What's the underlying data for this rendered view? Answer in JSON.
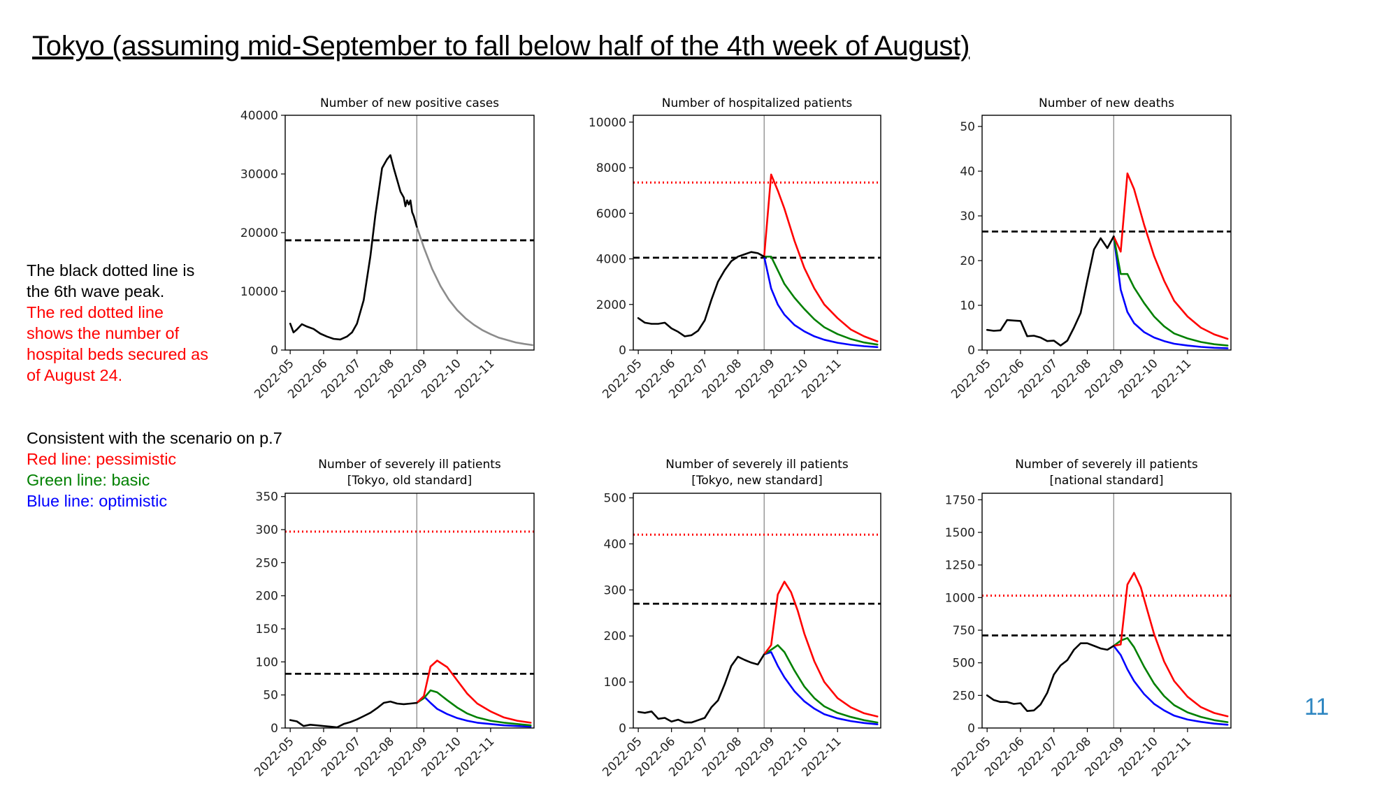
{
  "slide": {
    "title": "Tokyo (assuming mid-September to fall below half of the 4th week of August)",
    "page_number": "11",
    "notes_1": [
      {
        "text": "The black dotted line is",
        "color": "#000000"
      },
      {
        "text": "the 6th wave peak.",
        "color": "#000000"
      },
      {
        "text": "The red dotted line",
        "color": "#ff0000"
      },
      {
        "text": "shows the number of",
        "color": "#ff0000"
      },
      {
        "text": "hospital beds secured as",
        "color": "#ff0000"
      },
      {
        "text": "of August 24.",
        "color": "#ff0000"
      }
    ],
    "notes_2": [
      {
        "text": "Consistent with the scenario on p.7",
        "color": "#000000"
      },
      {
        "text": "Red line: pessimistic",
        "color": "#ff0000"
      },
      {
        "text": "Green line: basic",
        "color": "#008000"
      },
      {
        "text": "Blue line: optimistic",
        "color": "#0000ff"
      }
    ]
  },
  "colors": {
    "observed": "#000000",
    "projection_single": "#8c8c8c",
    "pessimistic": "#ff0000",
    "basic": "#008000",
    "optimistic": "#0000ff",
    "sixth_wave_peak": "#000000",
    "hospital_beds": "#ff0000",
    "vertical_marker": "#808080"
  },
  "chart_data": [
    {
      "type": "line",
      "title": [
        "Number of new positive cases"
      ],
      "x_ticks": [
        "2022-05",
        "2022-06",
        "2022-07",
        "2022-08",
        "2022-09",
        "2022-10",
        "2022-11"
      ],
      "ylim": [
        0,
        40000
      ],
      "y_ticks": [
        0,
        10000,
        20000,
        30000,
        40000
      ],
      "grid": false,
      "marker_x": 3.79,
      "reference_lines": [
        {
          "kind": "sixth_wave_peak",
          "y": 18700
        }
      ],
      "series": [
        {
          "role": "observed",
          "x": [
            0,
            0.1,
            0.2,
            0.35,
            0.5,
            0.7,
            0.9,
            1.1,
            1.3,
            1.5,
            1.7,
            1.85,
            2.0,
            2.2,
            2.4,
            2.55,
            2.75,
            2.9,
            3.0,
            3.1,
            3.2,
            3.3,
            3.4,
            3.45,
            3.5,
            3.55,
            3.6,
            3.65,
            3.7,
            3.79
          ],
          "y": [
            4500,
            3000,
            3500,
            4400,
            4000,
            3600,
            2800,
            2300,
            1900,
            1800,
            2300,
            3000,
            4500,
            8500,
            16000,
            23000,
            31000,
            32500,
            33200,
            31000,
            29000,
            27000,
            26000,
            24500,
            25500,
            24800,
            25500,
            23500,
            22800,
            21000
          ]
        },
        {
          "role": "projection_single",
          "x": [
            3.79,
            4.0,
            4.25,
            4.5,
            4.75,
            5.0,
            5.25,
            5.5,
            5.75,
            6.0,
            6.25,
            6.5,
            6.75,
            7.0,
            7.25
          ],
          "y": [
            21000,
            17500,
            13800,
            10900,
            8600,
            6800,
            5400,
            4300,
            3400,
            2700,
            2100,
            1700,
            1300,
            1050,
            850
          ]
        }
      ]
    },
    {
      "type": "line",
      "title": [
        "Number of hospitalized patients"
      ],
      "x_ticks": [
        "2022-05",
        "2022-06",
        "2022-07",
        "2022-08",
        "2022-09",
        "2022-10",
        "2022-11"
      ],
      "ylim": [
        0,
        10300
      ],
      "y_ticks": [
        0,
        2000,
        4000,
        6000,
        8000,
        10000
      ],
      "grid": false,
      "marker_x": 3.79,
      "reference_lines": [
        {
          "kind": "hospital_beds",
          "y": 7350
        },
        {
          "kind": "sixth_wave_peak",
          "y": 4050
        }
      ],
      "series": [
        {
          "role": "observed",
          "x": [
            0,
            0.2,
            0.4,
            0.6,
            0.8,
            1.0,
            1.2,
            1.4,
            1.6,
            1.8,
            2.0,
            2.2,
            2.4,
            2.6,
            2.8,
            3.0,
            3.2,
            3.4,
            3.6,
            3.79
          ],
          "y": [
            1400,
            1200,
            1150,
            1150,
            1200,
            950,
            800,
            600,
            650,
            850,
            1300,
            2200,
            3000,
            3500,
            3900,
            4100,
            4200,
            4300,
            4250,
            4100
          ]
        },
        {
          "role": "pessimistic",
          "x": [
            3.79,
            4.0,
            4.2,
            4.4,
            4.7,
            5.0,
            5.3,
            5.6,
            6.0,
            6.4,
            6.8,
            7.2
          ],
          "y": [
            4100,
            7700,
            7000,
            6200,
            4800,
            3600,
            2700,
            2000,
            1400,
            900,
            600,
            380
          ]
        },
        {
          "role": "basic",
          "x": [
            3.79,
            4.0,
            4.2,
            4.4,
            4.7,
            5.0,
            5.3,
            5.6,
            6.0,
            6.4,
            6.8,
            7.2
          ],
          "y": [
            4100,
            4100,
            3500,
            2900,
            2300,
            1800,
            1350,
            1000,
            700,
            480,
            330,
            240
          ]
        },
        {
          "role": "optimistic",
          "x": [
            3.79,
            4.0,
            4.2,
            4.4,
            4.7,
            5.0,
            5.3,
            5.6,
            6.0,
            6.4,
            6.8,
            7.2
          ],
          "y": [
            4100,
            2700,
            2000,
            1550,
            1100,
            820,
            600,
            450,
            320,
            230,
            170,
            130
          ]
        }
      ]
    },
    {
      "type": "line",
      "title": [
        "Number of new deaths"
      ],
      "x_ticks": [
        "2022-05",
        "2022-06",
        "2022-07",
        "2022-08",
        "2022-09",
        "2022-10",
        "2022-11"
      ],
      "ylim": [
        0,
        52.5
      ],
      "y_ticks": [
        0,
        10,
        20,
        30,
        40,
        50
      ],
      "grid": false,
      "marker_x": 3.79,
      "reference_lines": [
        {
          "kind": "sixth_wave_peak",
          "y": 26.5
        }
      ],
      "series": [
        {
          "role": "observed",
          "x": [
            0,
            0.2,
            0.4,
            0.6,
            0.8,
            1.0,
            1.2,
            1.4,
            1.6,
            1.8,
            2.0,
            2.2,
            2.4,
            2.6,
            2.8,
            3.0,
            3.2,
            3.4,
            3.6,
            3.79
          ],
          "y": [
            4.5,
            4.3,
            4.4,
            6.7,
            6.6,
            6.5,
            3.1,
            3.2,
            2.8,
            2.0,
            2.1,
            1.0,
            2.1,
            5.0,
            8.3,
            15.5,
            22.5,
            25.0,
            22.8,
            25.4
          ]
        },
        {
          "role": "pessimistic",
          "x": [
            3.79,
            4.0,
            4.2,
            4.4,
            4.7,
            5.0,
            5.3,
            5.6,
            6.0,
            6.4,
            6.8,
            7.2
          ],
          "y": [
            25.4,
            22.0,
            39.5,
            36.0,
            28.0,
            21.0,
            15.5,
            11.0,
            7.5,
            5.0,
            3.5,
            2.5
          ]
        },
        {
          "role": "basic",
          "x": [
            3.79,
            4.0,
            4.2,
            4.4,
            4.7,
            5.0,
            5.3,
            5.6,
            6.0,
            6.4,
            6.8,
            7.2
          ],
          "y": [
            25.4,
            17.0,
            17.0,
            14.0,
            10.5,
            7.5,
            5.3,
            3.7,
            2.6,
            1.8,
            1.3,
            1.0
          ]
        },
        {
          "role": "optimistic",
          "x": [
            3.79,
            4.0,
            4.2,
            4.4,
            4.7,
            5.0,
            5.3,
            5.6,
            6.0,
            6.4,
            6.8,
            7.2
          ],
          "y": [
            25.4,
            13.5,
            8.5,
            6.0,
            4.0,
            2.8,
            2.0,
            1.4,
            1.0,
            0.7,
            0.5,
            0.4
          ]
        }
      ]
    },
    {
      "type": "line",
      "title": [
        "Number of severely ill patients",
        "[Tokyo, old standard]"
      ],
      "x_ticks": [
        "2022-05",
        "2022-06",
        "2022-07",
        "2022-08",
        "2022-09",
        "2022-10",
        "2022-11"
      ],
      "ylim": [
        0,
        355
      ],
      "y_ticks": [
        0,
        50,
        100,
        150,
        200,
        250,
        300,
        350
      ],
      "grid": false,
      "marker_x": 3.79,
      "reference_lines": [
        {
          "kind": "hospital_beds",
          "y": 297
        },
        {
          "kind": "sixth_wave_peak",
          "y": 82
        }
      ],
      "series": [
        {
          "role": "observed",
          "x": [
            0,
            0.2,
            0.4,
            0.6,
            0.8,
            1.0,
            1.2,
            1.4,
            1.6,
            1.8,
            2.0,
            2.2,
            2.4,
            2.6,
            2.8,
            3.0,
            3.2,
            3.4,
            3.6,
            3.79
          ],
          "y": [
            12,
            10,
            3,
            5,
            4,
            3,
            2,
            1,
            6,
            9,
            13,
            18,
            23,
            30,
            38,
            40,
            37,
            36,
            37,
            38
          ]
        },
        {
          "role": "pessimistic",
          "x": [
            3.79,
            4.0,
            4.2,
            4.4,
            4.7,
            5.0,
            5.3,
            5.6,
            6.0,
            6.4,
            6.8,
            7.2
          ],
          "y": [
            38,
            48,
            93,
            102,
            92,
            72,
            52,
            37,
            25,
            16,
            11,
            8
          ]
        },
        {
          "role": "basic",
          "x": [
            3.79,
            4.0,
            4.2,
            4.4,
            4.7,
            5.0,
            5.3,
            5.6,
            6.0,
            6.4,
            6.8,
            7.2
          ],
          "y": [
            38,
            45,
            57,
            54,
            42,
            31,
            22,
            16,
            11,
            8,
            6,
            4
          ]
        },
        {
          "role": "optimistic",
          "x": [
            3.79,
            4.0,
            4.2,
            4.4,
            4.7,
            5.0,
            5.3,
            5.6,
            6.0,
            6.4,
            6.8,
            7.2
          ],
          "y": [
            38,
            48,
            38,
            29,
            21,
            15,
            11,
            8,
            6,
            4,
            3,
            2
          ]
        }
      ]
    },
    {
      "type": "line",
      "title": [
        "Number of severely ill patients",
        "[Tokyo, new standard]"
      ],
      "x_ticks": [
        "2022-05",
        "2022-06",
        "2022-07",
        "2022-08",
        "2022-09",
        "2022-10",
        "2022-11"
      ],
      "ylim": [
        0,
        510
      ],
      "y_ticks": [
        0,
        100,
        200,
        300,
        400,
        500
      ],
      "grid": false,
      "marker_x": 3.79,
      "reference_lines": [
        {
          "kind": "hospital_beds",
          "y": 420
        },
        {
          "kind": "sixth_wave_peak",
          "y": 270
        }
      ],
      "series": [
        {
          "role": "observed",
          "x": [
            0,
            0.2,
            0.4,
            0.6,
            0.8,
            1.0,
            1.2,
            1.4,
            1.6,
            1.8,
            2.0,
            2.2,
            2.4,
            2.6,
            2.8,
            3.0,
            3.2,
            3.4,
            3.6,
            3.79
          ],
          "y": [
            35,
            33,
            36,
            20,
            22,
            14,
            18,
            12,
            12,
            17,
            22,
            45,
            60,
            95,
            135,
            155,
            148,
            142,
            138,
            160
          ]
        },
        {
          "role": "pessimistic",
          "x": [
            3.79,
            4.0,
            4.2,
            4.4,
            4.6,
            4.8,
            5.0,
            5.3,
            5.6,
            6.0,
            6.4,
            6.8,
            7.2
          ],
          "y": [
            160,
            180,
            290,
            318,
            295,
            255,
            205,
            145,
            100,
            65,
            45,
            32,
            25
          ]
        },
        {
          "role": "basic",
          "x": [
            3.79,
            4.0,
            4.2,
            4.4,
            4.7,
            5.0,
            5.3,
            5.6,
            6.0,
            6.4,
            6.8,
            7.2
          ],
          "y": [
            160,
            170,
            180,
            165,
            125,
            90,
            65,
            47,
            33,
            24,
            17,
            12
          ]
        },
        {
          "role": "optimistic",
          "x": [
            3.79,
            4.0,
            4.2,
            4.4,
            4.7,
            5.0,
            5.3,
            5.6,
            6.0,
            6.4,
            6.8,
            7.2
          ],
          "y": [
            160,
            165,
            135,
            110,
            80,
            58,
            42,
            30,
            21,
            15,
            11,
            8
          ]
        }
      ]
    },
    {
      "type": "line",
      "title": [
        "Number of severely ill patients",
        "[national standard]"
      ],
      "x_ticks": [
        "2022-05",
        "2022-06",
        "2022-07",
        "2022-08",
        "2022-09",
        "2022-10",
        "2022-11"
      ],
      "ylim": [
        0,
        1800
      ],
      "y_ticks": [
        0,
        250,
        500,
        750,
        1000,
        1250,
        1500,
        1750
      ],
      "grid": false,
      "marker_x": 3.79,
      "reference_lines": [
        {
          "kind": "hospital_beds",
          "y": 1015
        },
        {
          "kind": "sixth_wave_peak",
          "y": 710
        }
      ],
      "series": [
        {
          "role": "observed",
          "x": [
            0,
            0.2,
            0.4,
            0.6,
            0.8,
            1.0,
            1.2,
            1.4,
            1.6,
            1.8,
            2.0,
            2.2,
            2.4,
            2.6,
            2.8,
            3.0,
            3.2,
            3.4,
            3.6,
            3.79
          ],
          "y": [
            250,
            215,
            200,
            200,
            185,
            190,
            130,
            135,
            180,
            270,
            410,
            480,
            520,
            600,
            650,
            650,
            630,
            610,
            600,
            630
          ]
        },
        {
          "role": "pessimistic",
          "x": [
            3.79,
            4.0,
            4.2,
            4.4,
            4.6,
            4.8,
            5.0,
            5.3,
            5.6,
            6.0,
            6.4,
            6.8,
            7.2
          ],
          "y": [
            630,
            640,
            1100,
            1190,
            1080,
            900,
            720,
            510,
            360,
            240,
            160,
            115,
            90
          ]
        },
        {
          "role": "basic",
          "x": [
            3.79,
            4.0,
            4.2,
            4.4,
            4.7,
            5.0,
            5.3,
            5.6,
            6.0,
            6.4,
            6.8,
            7.2
          ],
          "y": [
            630,
            670,
            690,
            620,
            470,
            340,
            245,
            175,
            120,
            85,
            60,
            45
          ]
        },
        {
          "role": "optimistic",
          "x": [
            3.79,
            4.0,
            4.2,
            4.4,
            4.7,
            5.0,
            5.3,
            5.6,
            6.0,
            6.4,
            6.8,
            7.2
          ],
          "y": [
            630,
            560,
            450,
            360,
            260,
            185,
            135,
            95,
            65,
            47,
            34,
            25
          ]
        }
      ]
    }
  ]
}
